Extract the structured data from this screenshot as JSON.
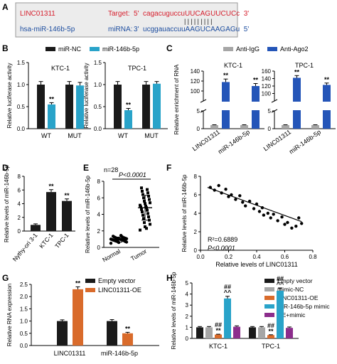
{
  "panel_letters": [
    "A",
    "B",
    "C",
    "D",
    "E",
    "F",
    "G",
    "H"
  ],
  "panel_a": {
    "left_top": "LINC01311",
    "left_bottom": "hsa-miR-146b-5p",
    "target_label": "Target:",
    "target_seq": "5'  cagacuguccuUUCAGUUCUCc  3'",
    "mirna_label": "miRNA:",
    "mirna_seq": "3'  ucggauaccuuAAGUCAAGAGu  5'",
    "pairing": "|||||||||",
    "red": "#d6202e",
    "blue": "#1f4fa0"
  },
  "colors": {
    "black_bar": "#1a1a1a",
    "teal": "#29a3c9",
    "gray": "#a6a6a6",
    "blue": "#2455b8",
    "orange": "#d96b2b",
    "purple": "#8c2d8c"
  },
  "chart_data": [
    {
      "id": "B1",
      "type": "bar",
      "title": "KTC-1",
      "ylabel": "Relative luciferase activity",
      "categories": [
        "WT",
        "MUT"
      ],
      "ylim": [
        0,
        1.5
      ],
      "yticks": [
        "0.0",
        "0.5",
        "1.0",
        "1.5"
      ],
      "series": [
        {
          "name": "miR-NC",
          "values": [
            1.0,
            1.0
          ],
          "err": [
            0.07,
            0.07
          ],
          "sig": [
            "",
            ""
          ]
        },
        {
          "name": "miR-146b-5p",
          "values": [
            0.55,
            0.98
          ],
          "err": [
            0.04,
            0.07
          ],
          "sig": [
            "**",
            ""
          ]
        }
      ]
    },
    {
      "id": "B2",
      "type": "bar",
      "title": "TPC-1",
      "ylabel": "Relative luciferase activity",
      "categories": [
        "WT",
        "MUT"
      ],
      "ylim": [
        0,
        1.5
      ],
      "yticks": [
        "0.0",
        "0.5",
        "1.0",
        "1.5"
      ],
      "series": [
        {
          "name": "miR-NC",
          "values": [
            1.0,
            1.0
          ],
          "err": [
            0.07,
            0.07
          ],
          "sig": [
            "",
            ""
          ]
        },
        {
          "name": "miR-146b-5p",
          "values": [
            0.42,
            1.02
          ],
          "err": [
            0.04,
            0.05
          ],
          "sig": [
            "**",
            ""
          ]
        }
      ]
    },
    {
      "id": "C1",
      "type": "bar",
      "title": "KTC-1",
      "ylabel": "Relative enrichment of RNA",
      "categories": [
        "LINC01311",
        "miR-146b-5p"
      ],
      "ylim_lower": [
        0,
        5
      ],
      "ylim_upper": [
        80,
        140
      ],
      "yticks_lower": [
        "0",
        "5"
      ],
      "yticks_upper": [
        "100",
        "120",
        "140"
      ],
      "series": [
        {
          "name": "Anti-IgG",
          "values": [
            1,
            1
          ],
          "err": [
            0.1,
            0.1
          ],
          "sig": [
            "",
            ""
          ]
        },
        {
          "name": "Anti-Ago2",
          "values": [
            118,
            110
          ],
          "err": [
            6,
            5
          ],
          "sig": [
            "**",
            "**"
          ]
        }
      ]
    },
    {
      "id": "C2",
      "type": "bar",
      "title": "TPC-1",
      "ylabel": "Relative enrichment of RNA",
      "categories": [
        "LINC01311",
        "miR-146b-5p"
      ],
      "ylim_lower": [
        0,
        5
      ],
      "ylim_upper": [
        80,
        160
      ],
      "yticks_lower": [
        "0",
        "5"
      ],
      "yticks_upper": [
        "100",
        "120",
        "140",
        "160"
      ],
      "series": [
        {
          "name": "Anti-IgG",
          "values": [
            1,
            1
          ],
          "err": [
            0.1,
            0.1
          ],
          "sig": [
            "",
            ""
          ]
        },
        {
          "name": "Anti-Ago2",
          "values": [
            142,
            123
          ],
          "err": [
            6,
            5
          ],
          "sig": [
            "**",
            "**"
          ]
        }
      ]
    },
    {
      "id": "D",
      "type": "bar",
      "ylabel": "Relative levels of miR-146b-5p",
      "categories": [
        "Nythy-ori 3-1",
        "KTC-1",
        "TPC-1"
      ],
      "ylim": [
        0,
        8
      ],
      "yticks": [
        "0",
        "2",
        "4",
        "6",
        "8"
      ],
      "values": [
        0.9,
        5.7,
        4.4
      ],
      "err": [
        0.15,
        0.35,
        0.3
      ],
      "sig": [
        "",
        "**",
        "**"
      ]
    },
    {
      "id": "E",
      "type": "scatter",
      "ylabel": "Relative levels of miR-146b-5p",
      "n_label": "n=28",
      "p_label": "P<0.0001",
      "categories": [
        "Normal",
        "Tumor"
      ],
      "ylim": [
        0,
        8
      ],
      "yticks": [
        "0",
        "2",
        "4",
        "6",
        "8"
      ],
      "groups": [
        {
          "name": "Normal",
          "mean": 0.95,
          "sd": 0.3,
          "values": [
            0.5,
            0.6,
            0.65,
            0.7,
            0.7,
            0.75,
            0.8,
            0.8,
            0.85,
            0.85,
            0.9,
            0.9,
            0.95,
            0.95,
            1.0,
            1.0,
            1.0,
            1.05,
            1.05,
            1.1,
            1.1,
            1.15,
            1.2,
            1.2,
            1.25,
            1.3,
            1.35,
            1.45
          ]
        },
        {
          "name": "Tumor",
          "mean": 4.8,
          "sd": 1.5,
          "values": [
            2.1,
            2.5,
            2.8,
            3.0,
            3.3,
            3.5,
            3.7,
            3.9,
            4.1,
            4.3,
            4.5,
            4.6,
            4.8,
            4.9,
            5.0,
            5.1,
            5.3,
            5.4,
            5.6,
            5.8,
            6.0,
            6.2,
            6.4,
            6.6,
            6.8,
            7.0,
            7.2,
            2.3
          ]
        }
      ]
    },
    {
      "id": "F",
      "type": "scatter",
      "ylabel": "Relative levels of miR-146b-5p",
      "xlabel": "Relative levels of LINC01311",
      "r2_label": "R²=0.6889",
      "p_label": "P<0.0001",
      "xlim": [
        0,
        0.8
      ],
      "ylim": [
        0,
        8
      ],
      "xticks": [
        "0.0",
        "0.2",
        "0.4",
        "0.6",
        "0.8"
      ],
      "yticks": [
        "0",
        "2",
        "4",
        "6",
        "8"
      ],
      "points": [
        [
          0.07,
          6.8
        ],
        [
          0.1,
          6.5
        ],
        [
          0.13,
          7.0
        ],
        [
          0.15,
          6.2
        ],
        [
          0.18,
          6.6
        ],
        [
          0.2,
          5.8
        ],
        [
          0.22,
          6.0
        ],
        [
          0.25,
          5.5
        ],
        [
          0.28,
          5.9
        ],
        [
          0.3,
          5.2
        ],
        [
          0.32,
          4.8
        ],
        [
          0.35,
          5.3
        ],
        [
          0.38,
          4.5
        ],
        [
          0.4,
          5.0
        ],
        [
          0.42,
          4.2
        ],
        [
          0.44,
          4.6
        ],
        [
          0.45,
          3.8
        ],
        [
          0.48,
          4.0
        ],
        [
          0.5,
          3.5
        ],
        [
          0.52,
          3.9
        ],
        [
          0.55,
          3.2
        ],
        [
          0.58,
          3.6
        ],
        [
          0.6,
          2.8
        ],
        [
          0.62,
          3.0
        ],
        [
          0.65,
          2.4
        ],
        [
          0.68,
          2.6
        ],
        [
          0.7,
          3.5
        ],
        [
          0.72,
          2.9
        ]
      ],
      "fit": [
        [
          0.05,
          6.8
        ],
        [
          0.72,
          3.1
        ]
      ]
    },
    {
      "id": "G",
      "type": "bar",
      "ylabel": "Relative RNA expression",
      "categories": [
        "LINC01311",
        "miR-146b-5p"
      ],
      "ylim": [
        0,
        2.5
      ],
      "yticks": [
        "0.0",
        "0.5",
        "1.0",
        "1.5",
        "2.0",
        "2.5"
      ],
      "series": [
        {
          "name": "Empty vector",
          "values": [
            1.0,
            1.0
          ],
          "err": [
            0.05,
            0.06
          ],
          "sig": [
            "",
            ""
          ]
        },
        {
          "name": "LINC01311-OE",
          "values": [
            2.3,
            0.5
          ],
          "err": [
            0.1,
            0.04
          ],
          "sig": [
            "**",
            "**"
          ]
        }
      ]
    },
    {
      "id": "H",
      "type": "bar",
      "ylabel": "Relative levels of miR-146b-5p",
      "categories": [
        "KTC-1",
        "TPC-1"
      ],
      "ylim": [
        0,
        5
      ],
      "yticks": [
        "0",
        "1",
        "2",
        "3",
        "4",
        "5"
      ],
      "series": [
        {
          "name": "Empty vector",
          "values": [
            1.0,
            1.0
          ],
          "err": [
            0.07,
            0.07
          ],
          "sig": [
            "",
            ""
          ]
        },
        {
          "name": "mimic-NC",
          "values": [
            1.0,
            1.0
          ],
          "err": [
            0.07,
            0.07
          ],
          "sig": [
            "",
            ""
          ]
        },
        {
          "name": "LINC01311-OE",
          "values": [
            0.35,
            0.3
          ],
          "err": [
            0.03,
            0.03
          ],
          "sig": [
            "##\n**",
            "##\n**"
          ]
        },
        {
          "name": "miR-146b-5p mimic",
          "values": [
            3.6,
            4.3
          ],
          "err": [
            0.2,
            0.25
          ],
          "sig": [
            "##\n^^",
            "##\n^^"
          ]
        },
        {
          "name": "OE+mimic",
          "values": [
            1.05,
            0.95
          ],
          "err": [
            0.08,
            0.08
          ],
          "sig": [
            "",
            ""
          ]
        }
      ]
    }
  ]
}
